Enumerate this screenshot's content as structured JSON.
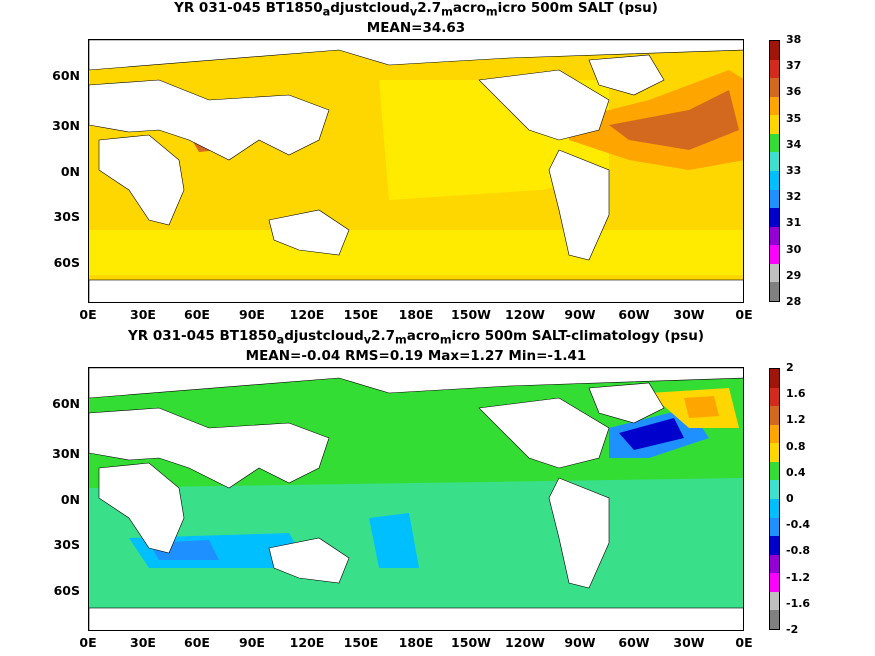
{
  "panels": [
    {
      "title_line1": "YR 031-045 BT1850",
      "sub1": "a",
      "mid1": "djustcloud",
      "sub2": "v",
      "mid2": "2.7",
      "sub3": "m",
      "mid3": "acro",
      "sub4": "m",
      "tail": "icro 500m SALT (psu)",
      "title_line2": "MEAN=34.63",
      "colorbar": {
        "labels": [
          "38",
          "37",
          "36",
          "35",
          "34",
          "33",
          "32",
          "31",
          "30",
          "29",
          "28"
        ],
        "colors": [
          "#a0140a",
          "#d42a1e",
          "#d2691e",
          "#ffa500",
          "#ffd700",
          "#33dd33",
          "#40e0d0",
          "#00bfff",
          "#1e90ff",
          "#0000cd",
          "#9400d3",
          "#ff00ff",
          "#c0c0c0",
          "#808080"
        ]
      }
    },
    {
      "title_line1": "YR 031-045 BT1850",
      "sub1": "a",
      "mid1": "djustcloud",
      "sub2": "v",
      "mid2": "2.7",
      "sub3": "m",
      "mid3": "acro",
      "sub4": "m",
      "tail": "icro 500m SALT-climatology (psu)",
      "title_line2": "MEAN=-0.04   RMS=0.19   Max=1.27   Min=-1.41",
      "colorbar": {
        "labels": [
          "2",
          "1.6",
          "1.2",
          "0.8",
          "0.4",
          "0",
          "-0.4",
          "-0.8",
          "-1.2",
          "-1.6",
          "-2"
        ],
        "colors": [
          "#a0140a",
          "#d42a1e",
          "#d2691e",
          "#ffa500",
          "#ffd700",
          "#33dd33",
          "#40e0d0",
          "#00bfff",
          "#1e90ff",
          "#0000cd",
          "#9400d3",
          "#ff00ff",
          "#c0c0c0",
          "#808080"
        ]
      }
    }
  ],
  "axes": {
    "y_labels": [
      "60N",
      "30N",
      "0N",
      "30S",
      "60S"
    ],
    "x_labels": [
      "0E",
      "30E",
      "60E",
      "90E",
      "120E",
      "150E",
      "180E",
      "150W",
      "120W",
      "90W",
      "60W",
      "30W",
      "0E"
    ]
  }
}
